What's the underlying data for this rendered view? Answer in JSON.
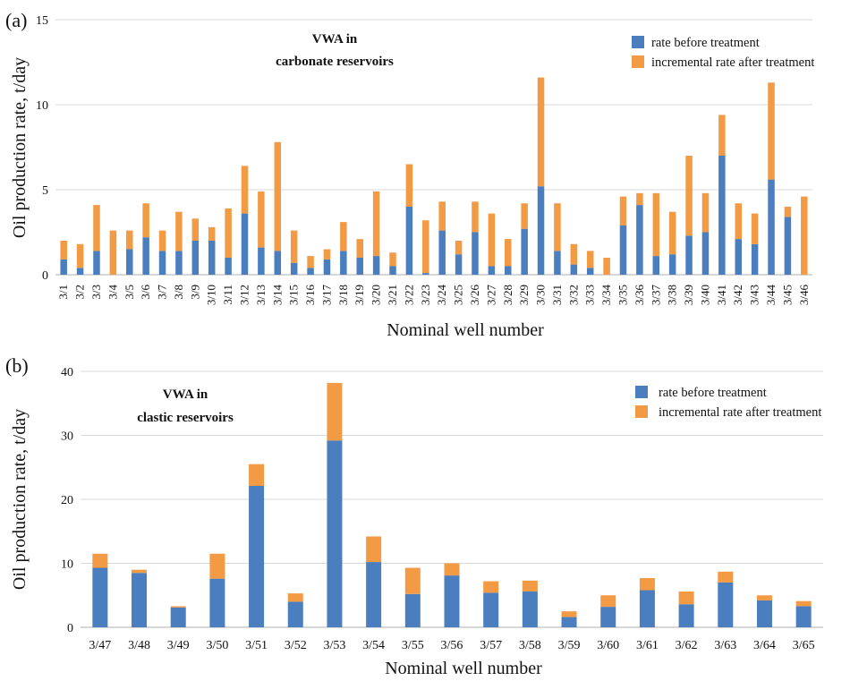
{
  "colors": {
    "before": "#4a7ebf",
    "incremental": "#f39a45",
    "axis": "#bfbfbf",
    "grid": "#d9d9d9"
  },
  "chart_data": [
    {
      "panel_label": "(a)",
      "type": "bar",
      "stacked": true,
      "title_lines": [
        "VWA in",
        "carbonate reservoirs"
      ],
      "xlabel": "Nominal well number",
      "ylabel": "Oil production rate, t/day",
      "ylim": [
        0,
        15
      ],
      "yticks": [
        0,
        5,
        10,
        15
      ],
      "grid": true,
      "legend_position": "top-right",
      "categories": [
        "3/1",
        "3/2",
        "3/3",
        "3/4",
        "3/5",
        "3/6",
        "3/7",
        "3/8",
        "3/9",
        "3/10",
        "3/11",
        "3/12",
        "3/13",
        "3/14",
        "3/15",
        "3/16",
        "3/17",
        "3/18",
        "3/19",
        "3/20",
        "3/21",
        "3/22",
        "3/23",
        "3/24",
        "3/25",
        "3/26",
        "3/27",
        "3/28",
        "3/29",
        "3/30",
        "3/31",
        "3/32",
        "3/33",
        "3/34",
        "3/35",
        "3/36",
        "3/37",
        "3/38",
        "3/39",
        "3/40",
        "3/41",
        "3/42",
        "3/43",
        "3/44",
        "3/45",
        "3/46"
      ],
      "series": [
        {
          "name": "rate before treatment",
          "values": [
            0.9,
            0.4,
            1.4,
            0,
            1.5,
            2.2,
            1.4,
            1.4,
            2.0,
            2.0,
            1.0,
            3.6,
            1.6,
            1.4,
            0.7,
            0.4,
            0.9,
            1.4,
            1.0,
            1.1,
            0.5,
            4.0,
            0.1,
            2.6,
            1.2,
            2.5,
            0.5,
            0.5,
            2.7,
            5.2,
            1.4,
            0.6,
            0.4,
            0,
            2.9,
            4.1,
            1.1,
            1.2,
            2.3,
            2.5,
            7.0,
            2.1,
            1.8,
            5.6,
            3.4,
            0
          ]
        },
        {
          "name": "incremental rate after treatment",
          "values": [
            1.1,
            1.4,
            2.7,
            2.6,
            1.1,
            2.0,
            1.2,
            2.3,
            1.3,
            0.8,
            2.9,
            2.8,
            3.3,
            6.4,
            1.9,
            0.7,
            0.6,
            1.7,
            1.1,
            3.8,
            0.8,
            2.5,
            3.1,
            1.7,
            0.8,
            1.8,
            3.1,
            1.6,
            1.5,
            6.4,
            2.8,
            1.2,
            1.0,
            1.0,
            1.7,
            0.7,
            3.7,
            2.5,
            4.7,
            2.3,
            2.4,
            2.1,
            1.8,
            5.7,
            0.6,
            4.6
          ]
        }
      ]
    },
    {
      "panel_label": "(b)",
      "type": "bar",
      "stacked": true,
      "title_lines": [
        "VWA in",
        "clastic reservoirs"
      ],
      "xlabel": "Nominal well number",
      "ylabel": "Oil production rate, t/day",
      "ylim": [
        0,
        40
      ],
      "yticks": [
        0,
        10,
        20,
        30,
        40
      ],
      "grid": true,
      "legend_position": "top-right",
      "categories": [
        "3/47",
        "3/48",
        "3/49",
        "3/50",
        "3/51",
        "3/52",
        "3/53",
        "3/54",
        "3/55",
        "3/56",
        "3/57",
        "3/58",
        "3/59",
        "3/60",
        "3/61",
        "3/62",
        "3/63",
        "3/64",
        "3/65"
      ],
      "series": [
        {
          "name": "rate before treatment",
          "values": [
            9.3,
            8.5,
            3.1,
            7.6,
            22.1,
            4.0,
            29.2,
            10.2,
            5.2,
            8.1,
            5.4,
            5.6,
            1.6,
            3.2,
            5.8,
            3.6,
            7.0,
            4.2,
            3.3
          ]
        },
        {
          "name": "incremental rate after treatment",
          "values": [
            2.2,
            0.5,
            0.2,
            3.9,
            3.4,
            1.3,
            9.0,
            4.0,
            4.1,
            1.9,
            1.8,
            1.7,
            0.9,
            1.8,
            1.9,
            2.0,
            1.7,
            0.8,
            0.8
          ]
        }
      ]
    }
  ]
}
